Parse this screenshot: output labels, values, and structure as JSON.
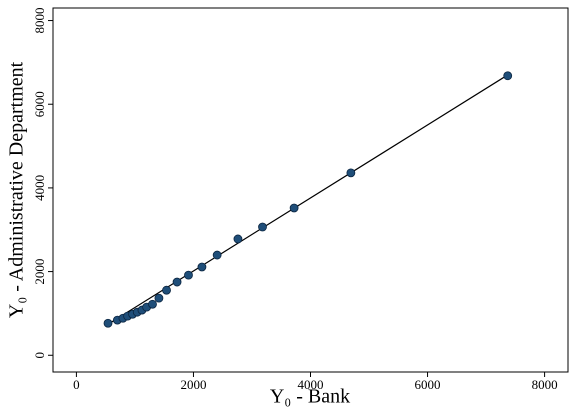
{
  "chart_data": {
    "type": "scatter",
    "x_label": "Y₀ - Bank",
    "y_label": "Y₀ - Administrative Department",
    "x": [
      540,
      700,
      795,
      875,
      960,
      1040,
      1120,
      1200,
      1300,
      1410,
      1540,
      1720,
      1915,
      2145,
      2405,
      2760,
      3180,
      3720,
      4690,
      7370
    ],
    "values": [
      765,
      840,
      885,
      935,
      980,
      1030,
      1080,
      1150,
      1220,
      1365,
      1555,
      1750,
      1915,
      2110,
      2395,
      2780,
      3065,
      3520,
      4360,
      6680
    ],
    "color": "#1f4e79",
    "fit_line": {
      "x": [
        540,
        7370
      ],
      "y": [
        740,
        6700
      ],
      "color": "#000000"
    },
    "xlim": [
      -400,
      8400
    ],
    "ylim": [
      -400,
      8300
    ],
    "xticks": [
      0,
      2000,
      4000,
      6000,
      8000
    ],
    "yticks": [
      0,
      2000,
      4000,
      6000,
      8000
    ]
  }
}
